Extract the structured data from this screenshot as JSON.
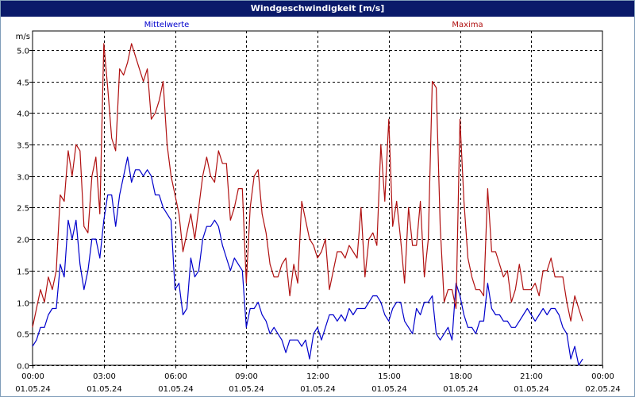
{
  "window": {
    "title": "Windgeschwindigkeit [m/s]"
  },
  "colors": {
    "mean": "#0000cc",
    "max": "#b01010",
    "titlebar": "#0a1a6a",
    "grid": "#000000"
  },
  "chart_data": {
    "type": "line",
    "title": "Windgeschwindigkeit [m/s]",
    "ylabel": "m/s",
    "xlabel": "",
    "ylim": [
      0,
      5.3
    ],
    "yticks": [
      "0.0",
      "0.5",
      "1.0",
      "1.5",
      "2.0",
      "2.5",
      "3.0",
      "3.5",
      "4.0",
      "4.5",
      "5.0"
    ],
    "xlim": [
      "00:00 01.05.24",
      "00:00 02.05.24"
    ],
    "xticks": [
      {
        "time": "00:00",
        "date": "01.05.24"
      },
      {
        "time": "03:00",
        "date": "01.05.24"
      },
      {
        "time": "06:00",
        "date": "01.05.24"
      },
      {
        "time": "09:00",
        "date": "01.05.24"
      },
      {
        "time": "12:00",
        "date": "01.05.24"
      },
      {
        "time": "15:00",
        "date": "01.05.24"
      },
      {
        "time": "18:00",
        "date": "01.05.24"
      },
      {
        "time": "21:00",
        "date": "01.05.24"
      },
      {
        "time": "00:00",
        "date": "02.05.24"
      }
    ],
    "grid": true,
    "legend": [
      {
        "name": "Mittelwerte",
        "placement": "top-left"
      },
      {
        "name": "Maxima",
        "placement": "top-right"
      }
    ],
    "series": [
      {
        "name": "Mittelwerte",
        "color": "#0000cc",
        "points": [
          [
            "00:00",
            0.3
          ],
          [
            "00:10",
            0.4
          ],
          [
            "00:20",
            0.6
          ],
          [
            "00:30",
            0.6
          ],
          [
            "00:40",
            0.8
          ],
          [
            "00:50",
            0.9
          ],
          [
            "01:00",
            0.9
          ],
          [
            "01:10",
            1.6
          ],
          [
            "01:20",
            1.4
          ],
          [
            "01:30",
            2.3
          ],
          [
            "01:40",
            2.0
          ],
          [
            "01:50",
            2.3
          ],
          [
            "02:00",
            1.6
          ],
          [
            "02:10",
            1.2
          ],
          [
            "02:20",
            1.5
          ],
          [
            "02:30",
            2.0
          ],
          [
            "02:40",
            2.0
          ],
          [
            "02:50",
            1.7
          ],
          [
            "03:00",
            2.3
          ],
          [
            "03:10",
            2.7
          ],
          [
            "03:20",
            2.7
          ],
          [
            "03:30",
            2.2
          ],
          [
            "03:40",
            2.7
          ],
          [
            "03:50",
            3.0
          ],
          [
            "04:00",
            3.3
          ],
          [
            "04:10",
            2.9
          ],
          [
            "04:20",
            3.1
          ],
          [
            "04:30",
            3.1
          ],
          [
            "04:40",
            3.0
          ],
          [
            "04:50",
            3.1
          ],
          [
            "05:00",
            3.0
          ],
          [
            "05:10",
            2.7
          ],
          [
            "05:20",
            2.7
          ],
          [
            "05:30",
            2.5
          ],
          [
            "05:40",
            2.4
          ],
          [
            "05:50",
            2.3
          ],
          [
            "06:00",
            1.2
          ],
          [
            "06:10",
            1.3
          ],
          [
            "06:20",
            0.8
          ],
          [
            "06:30",
            0.9
          ],
          [
            "06:40",
            1.7
          ],
          [
            "06:50",
            1.4
          ],
          [
            "07:00",
            1.5
          ],
          [
            "07:10",
            2.0
          ],
          [
            "07:20",
            2.2
          ],
          [
            "07:30",
            2.2
          ],
          [
            "07:40",
            2.3
          ],
          [
            "07:50",
            2.2
          ],
          [
            "08:00",
            1.9
          ],
          [
            "08:10",
            1.7
          ],
          [
            "08:20",
            1.5
          ],
          [
            "08:30",
            1.7
          ],
          [
            "08:40",
            1.6
          ],
          [
            "08:50",
            1.5
          ],
          [
            "09:00",
            0.6
          ],
          [
            "09:10",
            0.9
          ],
          [
            "09:20",
            0.9
          ],
          [
            "09:30",
            1.0
          ],
          [
            "09:40",
            0.8
          ],
          [
            "09:50",
            0.7
          ],
          [
            "10:00",
            0.5
          ],
          [
            "10:10",
            0.6
          ],
          [
            "10:20",
            0.5
          ],
          [
            "10:30",
            0.4
          ],
          [
            "10:40",
            0.2
          ],
          [
            "10:50",
            0.4
          ],
          [
            "11:00",
            0.4
          ],
          [
            "11:10",
            0.4
          ],
          [
            "11:20",
            0.3
          ],
          [
            "11:30",
            0.4
          ],
          [
            "11:40",
            0.1
          ],
          [
            "11:50",
            0.5
          ],
          [
            "12:00",
            0.6
          ],
          [
            "12:10",
            0.4
          ],
          [
            "12:20",
            0.6
          ],
          [
            "12:30",
            0.8
          ],
          [
            "12:40",
            0.8
          ],
          [
            "12:50",
            0.7
          ],
          [
            "13:00",
            0.8
          ],
          [
            "13:10",
            0.7
          ],
          [
            "13:20",
            0.9
          ],
          [
            "13:30",
            0.8
          ],
          [
            "13:40",
            0.9
          ],
          [
            "13:50",
            0.9
          ],
          [
            "14:00",
            0.9
          ],
          [
            "14:10",
            1.0
          ],
          [
            "14:20",
            1.1
          ],
          [
            "14:30",
            1.1
          ],
          [
            "14:40",
            1.0
          ],
          [
            "14:50",
            0.8
          ],
          [
            "15:00",
            0.7
          ],
          [
            "15:10",
            0.9
          ],
          [
            "15:20",
            1.0
          ],
          [
            "15:30",
            1.0
          ],
          [
            "15:40",
            0.7
          ],
          [
            "15:50",
            0.6
          ],
          [
            "16:00",
            0.5
          ],
          [
            "16:10",
            0.9
          ],
          [
            "16:20",
            0.8
          ],
          [
            "16:30",
            1.0
          ],
          [
            "16:40",
            1.0
          ],
          [
            "16:50",
            1.1
          ],
          [
            "17:00",
            0.5
          ],
          [
            "17:10",
            0.4
          ],
          [
            "17:20",
            0.5
          ],
          [
            "17:30",
            0.6
          ],
          [
            "17:40",
            0.4
          ],
          [
            "17:50",
            1.3
          ],
          [
            "18:00",
            1.1
          ],
          [
            "18:10",
            0.8
          ],
          [
            "18:20",
            0.6
          ],
          [
            "18:30",
            0.6
          ],
          [
            "18:40",
            0.5
          ],
          [
            "18:50",
            0.7
          ],
          [
            "19:00",
            0.7
          ],
          [
            "19:10",
            1.3
          ],
          [
            "19:20",
            0.9
          ],
          [
            "19:30",
            0.8
          ],
          [
            "19:40",
            0.8
          ],
          [
            "19:50",
            0.7
          ],
          [
            "20:00",
            0.7
          ],
          [
            "20:10",
            0.6
          ],
          [
            "20:20",
            0.6
          ],
          [
            "20:30",
            0.7
          ],
          [
            "20:40",
            0.8
          ],
          [
            "20:50",
            0.9
          ],
          [
            "21:00",
            0.8
          ],
          [
            "21:10",
            0.7
          ],
          [
            "21:20",
            0.8
          ],
          [
            "21:30",
            0.9
          ],
          [
            "21:40",
            0.8
          ],
          [
            "21:50",
            0.9
          ],
          [
            "22:00",
            0.9
          ],
          [
            "22:10",
            0.8
          ],
          [
            "22:20",
            0.6
          ],
          [
            "22:30",
            0.5
          ],
          [
            "22:40",
            0.1
          ],
          [
            "22:50",
            0.3
          ],
          [
            "23:00",
            0.0
          ],
          [
            "23:10",
            0.1
          ]
        ]
      },
      {
        "name": "Maxima",
        "color": "#b01010",
        "points": [
          [
            "00:00",
            0.6
          ],
          [
            "00:10",
            0.9
          ],
          [
            "00:20",
            1.2
          ],
          [
            "00:30",
            1.0
          ],
          [
            "00:40",
            1.4
          ],
          [
            "00:50",
            1.2
          ],
          [
            "01:00",
            1.5
          ],
          [
            "01:10",
            2.7
          ],
          [
            "01:20",
            2.6
          ],
          [
            "01:30",
            3.4
          ],
          [
            "01:40",
            3.0
          ],
          [
            "01:50",
            3.5
          ],
          [
            "02:00",
            3.4
          ],
          [
            "02:10",
            2.2
          ],
          [
            "02:20",
            2.1
          ],
          [
            "02:30",
            3.0
          ],
          [
            "02:40",
            3.3
          ],
          [
            "02:50",
            2.4
          ],
          [
            "03:00",
            5.1
          ],
          [
            "03:10",
            4.4
          ],
          [
            "03:20",
            3.6
          ],
          [
            "03:30",
            3.4
          ],
          [
            "03:40",
            4.7
          ],
          [
            "03:50",
            4.6
          ],
          [
            "04:00",
            4.8
          ],
          [
            "04:10",
            5.1
          ],
          [
            "04:20",
            4.9
          ],
          [
            "04:30",
            4.7
          ],
          [
            "04:40",
            4.5
          ],
          [
            "04:50",
            4.7
          ],
          [
            "05:00",
            3.9
          ],
          [
            "05:10",
            4.0
          ],
          [
            "05:20",
            4.2
          ],
          [
            "05:30",
            4.5
          ],
          [
            "05:40",
            3.5
          ],
          [
            "05:50",
            3.0
          ],
          [
            "06:00",
            2.7
          ],
          [
            "06:10",
            2.4
          ],
          [
            "06:20",
            1.8
          ],
          [
            "06:30",
            2.1
          ],
          [
            "06:40",
            2.4
          ],
          [
            "06:50",
            2.0
          ],
          [
            "07:00",
            2.5
          ],
          [
            "07:10",
            3.0
          ],
          [
            "07:20",
            3.3
          ],
          [
            "07:30",
            3.0
          ],
          [
            "07:40",
            2.9
          ],
          [
            "07:50",
            3.4
          ],
          [
            "08:00",
            3.2
          ],
          [
            "08:10",
            3.2
          ],
          [
            "08:20",
            2.3
          ],
          [
            "08:30",
            2.5
          ],
          [
            "08:40",
            2.8
          ],
          [
            "08:50",
            2.8
          ],
          [
            "09:00",
            1.3
          ],
          [
            "09:10",
            2.5
          ],
          [
            "09:20",
            3.0
          ],
          [
            "09:30",
            3.1
          ],
          [
            "09:40",
            2.4
          ],
          [
            "09:50",
            2.1
          ],
          [
            "10:00",
            1.6
          ],
          [
            "10:10",
            1.4
          ],
          [
            "10:20",
            1.4
          ],
          [
            "10:30",
            1.6
          ],
          [
            "10:40",
            1.7
          ],
          [
            "10:50",
            1.1
          ],
          [
            "11:00",
            1.6
          ],
          [
            "11:10",
            1.3
          ],
          [
            "11:20",
            2.6
          ],
          [
            "11:30",
            2.3
          ],
          [
            "11:40",
            2.0
          ],
          [
            "11:50",
            1.9
          ],
          [
            "12:00",
            1.7
          ],
          [
            "12:10",
            1.8
          ],
          [
            "12:20",
            2.0
          ],
          [
            "12:30",
            1.2
          ],
          [
            "12:40",
            1.5
          ],
          [
            "12:50",
            1.8
          ],
          [
            "13:00",
            1.8
          ],
          [
            "13:10",
            1.7
          ],
          [
            "13:20",
            1.9
          ],
          [
            "13:30",
            1.8
          ],
          [
            "13:40",
            1.7
          ],
          [
            "13:50",
            2.5
          ],
          [
            "14:00",
            1.4
          ],
          [
            "14:10",
            2.0
          ],
          [
            "14:20",
            2.1
          ],
          [
            "14:30",
            1.9
          ],
          [
            "14:40",
            3.5
          ],
          [
            "14:50",
            2.6
          ],
          [
            "15:00",
            3.9
          ],
          [
            "15:10",
            2.2
          ],
          [
            "15:20",
            2.6
          ],
          [
            "15:30",
            2.0
          ],
          [
            "15:40",
            1.3
          ],
          [
            "15:50",
            2.5
          ],
          [
            "16:00",
            1.9
          ],
          [
            "16:10",
            1.9
          ],
          [
            "16:20",
            2.6
          ],
          [
            "16:30",
            1.4
          ],
          [
            "16:40",
            2.0
          ],
          [
            "16:50",
            4.5
          ],
          [
            "17:00",
            4.4
          ],
          [
            "17:10",
            2.2
          ],
          [
            "17:20",
            1.0
          ],
          [
            "17:30",
            1.2
          ],
          [
            "17:40",
            1.2
          ],
          [
            "17:50",
            0.9
          ],
          [
            "18:00",
            3.9
          ],
          [
            "18:10",
            2.6
          ],
          [
            "18:20",
            1.7
          ],
          [
            "18:30",
            1.4
          ],
          [
            "18:40",
            1.2
          ],
          [
            "18:50",
            1.2
          ],
          [
            "19:00",
            1.1
          ],
          [
            "19:10",
            2.8
          ],
          [
            "19:20",
            1.8
          ],
          [
            "19:30",
            1.8
          ],
          [
            "19:40",
            1.6
          ],
          [
            "19:50",
            1.4
          ],
          [
            "20:00",
            1.5
          ],
          [
            "20:10",
            1.0
          ],
          [
            "20:20",
            1.2
          ],
          [
            "20:30",
            1.6
          ],
          [
            "20:40",
            1.2
          ],
          [
            "20:50",
            1.2
          ],
          [
            "21:00",
            1.2
          ],
          [
            "21:10",
            1.3
          ],
          [
            "21:20",
            1.1
          ],
          [
            "21:30",
            1.5
          ],
          [
            "21:40",
            1.5
          ],
          [
            "21:50",
            1.7
          ],
          [
            "22:00",
            1.4
          ],
          [
            "22:10",
            1.4
          ],
          [
            "22:20",
            1.4
          ],
          [
            "22:30",
            1.0
          ],
          [
            "22:40",
            0.7
          ],
          [
            "22:50",
            1.1
          ],
          [
            "23:00",
            0.9
          ],
          [
            "23:10",
            0.7
          ]
        ]
      }
    ]
  }
}
